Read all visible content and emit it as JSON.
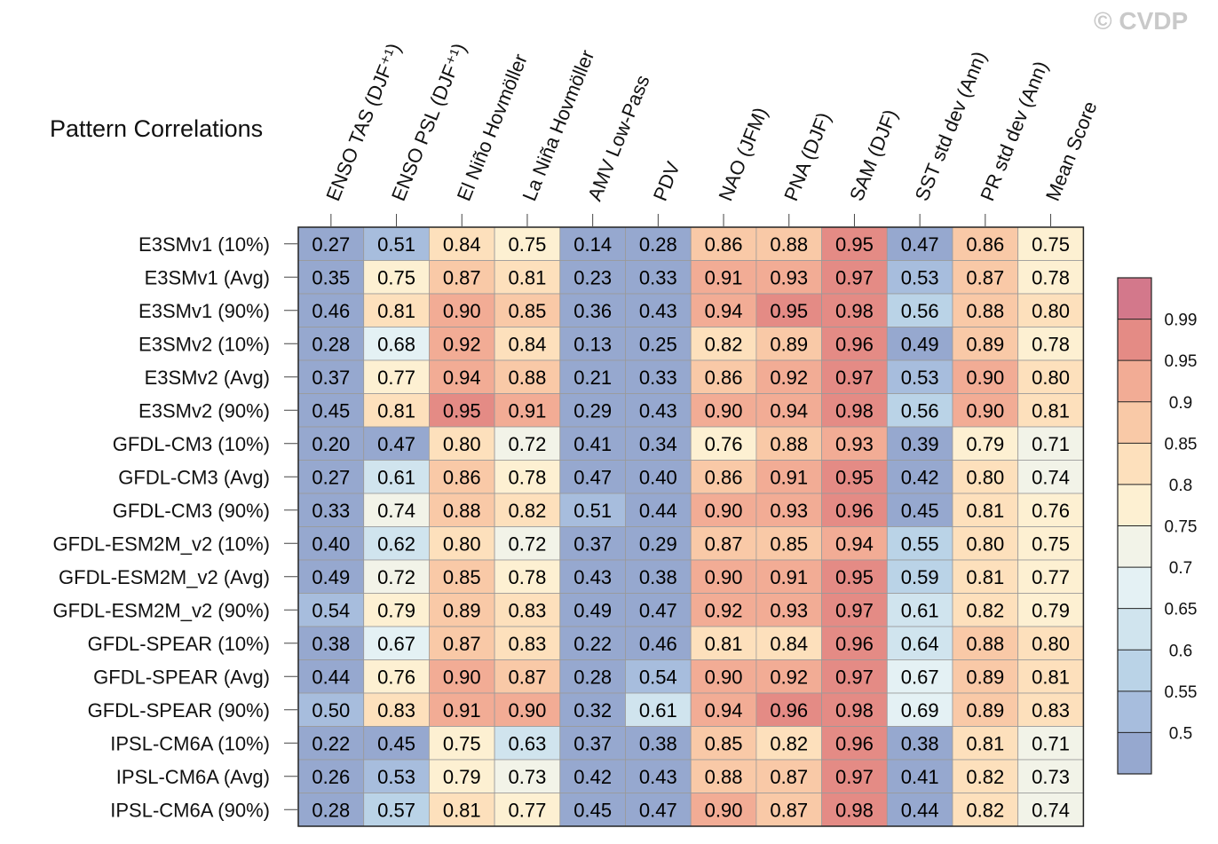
{
  "title": "Pattern Correlations",
  "watermark": "© CVDP",
  "chart_data": {
    "type": "heatmap",
    "title": "Pattern Correlations",
    "columns": [
      "ENSO TAS (DJF⁺¹)",
      "ENSO PSL (DJF⁺¹)",
      "El Niño Hovmöller",
      "La Niña Hovmöller",
      "AMV Low-Pass",
      "PDV",
      "NAO (JFM)",
      "PNA (DJF)",
      "SAM (DJF)",
      "SST std dev (Ann)",
      "PR std dev (Ann)",
      "Mean Score"
    ],
    "rows": [
      "E3SMv1 (10%)",
      "E3SMv1 (Avg)",
      "E3SMv1 (90%)",
      "E3SMv2 (10%)",
      "E3SMv2 (Avg)",
      "E3SMv2 (90%)",
      "GFDL-CM3 (10%)",
      "GFDL-CM3 (Avg)",
      "GFDL-CM3 (90%)",
      "GFDL-ESM2M_v2 (10%)",
      "GFDL-ESM2M_v2 (Avg)",
      "GFDL-ESM2M_v2 (90%)",
      "GFDL-SPEAR (10%)",
      "GFDL-SPEAR (Avg)",
      "GFDL-SPEAR (90%)",
      "IPSL-CM6A (10%)",
      "IPSL-CM6A (Avg)",
      "IPSL-CM6A (90%)"
    ],
    "values": [
      [
        0.27,
        0.51,
        0.84,
        0.75,
        0.14,
        0.28,
        0.86,
        0.88,
        0.95,
        0.47,
        0.86,
        0.75
      ],
      [
        0.35,
        0.75,
        0.87,
        0.81,
        0.23,
        0.33,
        0.91,
        0.93,
        0.97,
        0.53,
        0.87,
        0.78
      ],
      [
        0.46,
        0.81,
        0.9,
        0.85,
        0.36,
        0.43,
        0.94,
        0.95,
        0.98,
        0.56,
        0.88,
        0.8
      ],
      [
        0.28,
        0.68,
        0.92,
        0.84,
        0.13,
        0.25,
        0.82,
        0.89,
        0.96,
        0.49,
        0.89,
        0.78
      ],
      [
        0.37,
        0.77,
        0.94,
        0.88,
        0.21,
        0.33,
        0.86,
        0.92,
        0.97,
        0.53,
        0.9,
        0.8
      ],
      [
        0.45,
        0.81,
        0.95,
        0.91,
        0.29,
        0.43,
        0.9,
        0.94,
        0.98,
        0.56,
        0.9,
        0.81
      ],
      [
        0.2,
        0.47,
        0.8,
        0.72,
        0.41,
        0.34,
        0.76,
        0.88,
        0.93,
        0.39,
        0.79,
        0.71
      ],
      [
        0.27,
        0.61,
        0.86,
        0.78,
        0.47,
        0.4,
        0.86,
        0.91,
        0.95,
        0.42,
        0.8,
        0.74
      ],
      [
        0.33,
        0.74,
        0.88,
        0.82,
        0.51,
        0.44,
        0.9,
        0.93,
        0.96,
        0.45,
        0.81,
        0.76
      ],
      [
        0.4,
        0.62,
        0.8,
        0.72,
        0.37,
        0.29,
        0.87,
        0.85,
        0.94,
        0.55,
        0.8,
        0.75
      ],
      [
        0.49,
        0.72,
        0.85,
        0.78,
        0.43,
        0.38,
        0.9,
        0.91,
        0.95,
        0.59,
        0.81,
        0.77
      ],
      [
        0.54,
        0.79,
        0.89,
        0.83,
        0.49,
        0.47,
        0.92,
        0.93,
        0.97,
        0.61,
        0.82,
        0.79
      ],
      [
        0.38,
        0.67,
        0.87,
        0.83,
        0.22,
        0.46,
        0.81,
        0.84,
        0.96,
        0.64,
        0.88,
        0.8
      ],
      [
        0.44,
        0.76,
        0.9,
        0.87,
        0.28,
        0.54,
        0.9,
        0.92,
        0.97,
        0.67,
        0.89,
        0.81
      ],
      [
        0.5,
        0.83,
        0.91,
        0.9,
        0.32,
        0.61,
        0.94,
        0.96,
        0.98,
        0.69,
        0.89,
        0.83
      ],
      [
        0.22,
        0.45,
        0.75,
        0.63,
        0.37,
        0.38,
        0.85,
        0.82,
        0.96,
        0.38,
        0.81,
        0.71
      ],
      [
        0.26,
        0.53,
        0.79,
        0.73,
        0.42,
        0.43,
        0.88,
        0.87,
        0.97,
        0.41,
        0.82,
        0.73
      ],
      [
        0.28,
        0.57,
        0.81,
        0.77,
        0.45,
        0.47,
        0.9,
        0.87,
        0.98,
        0.44,
        0.82,
        0.74
      ]
    ],
    "colorbar": {
      "levels": [
        0.5,
        0.55,
        0.6,
        0.65,
        0.7,
        0.75,
        0.8,
        0.85,
        0.9,
        0.95,
        0.99
      ],
      "labels": [
        "0.5",
        "0.55",
        "0.6",
        "0.65",
        "0.7",
        "0.75",
        "0.8",
        "0.85",
        "0.9",
        "0.95",
        "0.99"
      ],
      "colors": [
        "#96a8cf",
        "#a7bddd",
        "#bad3e7",
        "#d0e4ee",
        "#e4f1f4",
        "#f2f3e8",
        "#fdf0d2",
        "#fde0bc",
        "#f9c9a7",
        "#f2ac95",
        "#e48b85",
        "#d3788b"
      ]
    }
  }
}
